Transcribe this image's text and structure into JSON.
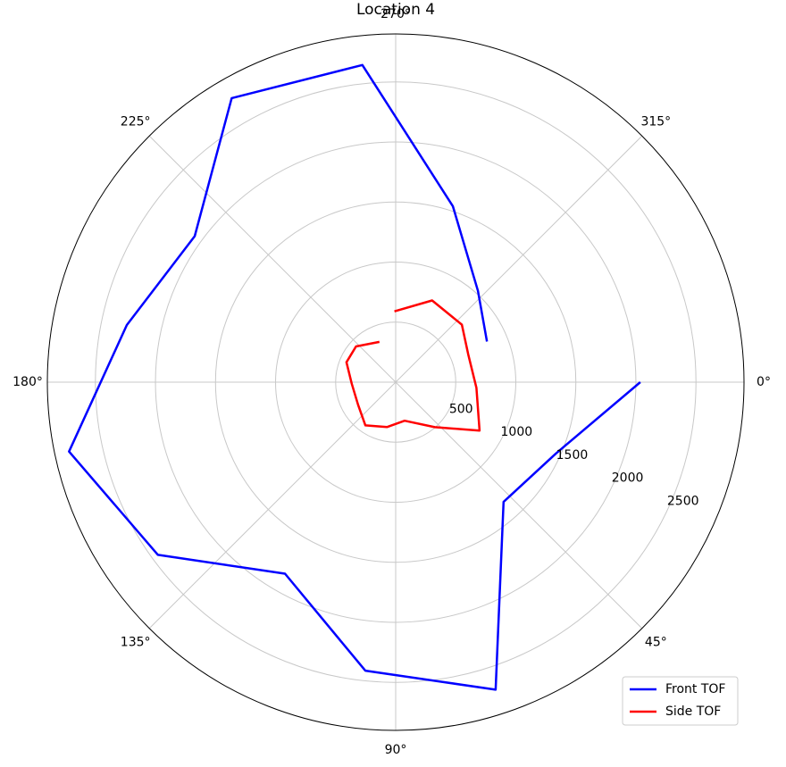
{
  "chart_data": {
    "type": "polar",
    "title": "Location 4",
    "theta_direction": "clockwise",
    "theta_zero": "E",
    "rlim": [
      0,
      2900
    ],
    "rticks": [
      500,
      1000,
      1500,
      2000,
      2500
    ],
    "thetaticks": [
      {
        "value": 0,
        "label": "0°"
      },
      {
        "value": 45,
        "label": "45°"
      },
      {
        "value": 90,
        "label": "90°"
      },
      {
        "value": 135,
        "label": "135°"
      },
      {
        "value": 180,
        "label": "180°"
      },
      {
        "value": 225,
        "label": "225°"
      },
      {
        "value": 270,
        "label": "270°"
      },
      {
        "value": 315,
        "label": "315°"
      }
    ],
    "grid": true,
    "legend": "lower right",
    "series": [
      {
        "name": "Front TOF",
        "color": "#0000ff",
        "x": [
          0,
          24,
          48,
          72,
          96,
          120,
          144,
          168,
          192,
          216,
          240,
          264,
          288,
          312,
          336
        ],
        "values": [
          2037,
          1460,
          1342,
          2693,
          2416,
          1842,
          2447,
          2780,
          2288,
          2068,
          2731,
          2656,
          1541,
          1024,
          832
        ]
      },
      {
        "name": "Side TOF",
        "color": "#ff0000",
        "x": [
          269,
          294,
          319,
          339,
          4,
          30,
          49,
          77,
          101,
          125,
          149,
          178,
          202,
          222,
          248
        ],
        "values": [
          590,
          745,
          730,
          647,
          674,
          806,
          497,
          330,
          381,
          439,
          365,
          366,
          442,
          444,
          362
        ]
      }
    ]
  }
}
